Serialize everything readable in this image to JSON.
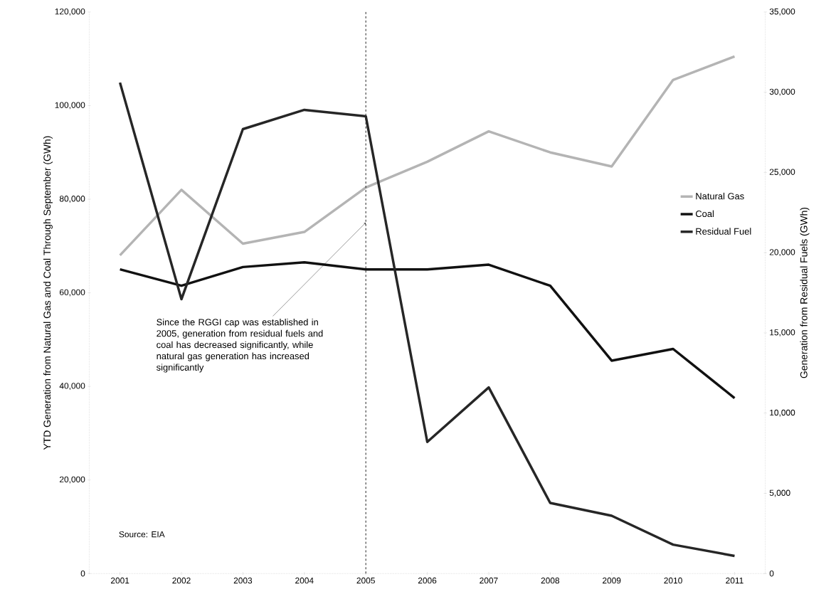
{
  "chart_data": {
    "type": "line",
    "xlabel": null,
    "ylabel": "YTD Generation from Natural Gas and Coal Through September (GWh)",
    "y2label": "Generation from Residual Fuels (GWh)",
    "categories": [
      "2001",
      "2002",
      "2003",
      "2004",
      "2005",
      "2006",
      "2007",
      "2008",
      "2009",
      "2010",
      "2011"
    ],
    "series": [
      {
        "name": "Natural Gas",
        "color": "#b4b4b4",
        "values": [
          68000,
          82000,
          70500,
          73000,
          82500,
          88000,
          94500,
          90000,
          87000,
          105500,
          110500
        ]
      },
      {
        "name": "Coal",
        "color": "#111111",
        "values": [
          65000,
          61500,
          65500,
          66500,
          65000,
          65000,
          66000,
          61500,
          45500,
          48000,
          37500
        ]
      },
      {
        "name": "Residual Fuel",
        "color": "#262626",
        "axis": "y2",
        "values": [
          30600,
          17100,
          27700,
          28900,
          28500,
          8200,
          11600,
          4400,
          3600,
          1800,
          1100
        ]
      }
    ],
    "ylim": [
      0,
      120000
    ],
    "yticks": [
      0,
      {
        "value": 20000,
        "label": "20,000"
      },
      {
        "value": 40000,
        "label": "40,000"
      },
      {
        "value": 60000,
        "label": "60,000"
      },
      {
        "value": 80000,
        "label": "80,000"
      },
      {
        "value": 100000,
        "label": "100,000"
      },
      {
        "value": 120000,
        "label": "120,000"
      }
    ],
    "y2lim": [
      0,
      35000
    ],
    "y2ticks": [
      0,
      {
        "value": 5000,
        "label": "5,000"
      },
      {
        "value": 10000,
        "label": "10,000"
      },
      {
        "value": 15000,
        "label": "15,000"
      },
      {
        "value": 20000,
        "label": "20,000"
      },
      {
        "value": 25000,
        "label": "25,000"
      },
      {
        "value": 30000,
        "label": "30,000"
      },
      {
        "value": 35000,
        "label": "35,000"
      }
    ],
    "ref_lines": [
      {
        "axis": "x",
        "value": "2005",
        "color": "#222222",
        "line_style": "dashed"
      }
    ],
    "annotations": [
      {
        "text": "Since the RGGI cap was established in 2005, generation from residual fuels and coal has decreased significantly, while natural gas generation has increased significantly",
        "x": "2005",
        "y": 75000
      },
      "Source: EIA"
    ],
    "legend": "right"
  }
}
